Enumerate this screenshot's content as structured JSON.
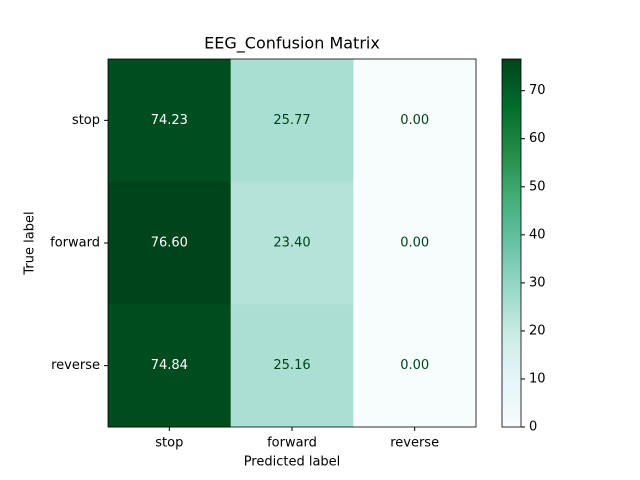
{
  "chart_data": {
    "type": "heatmap",
    "title": "EEG_Confusion Matrix",
    "xlabel": "Predicted label",
    "ylabel": "True label",
    "x_categories": [
      "stop",
      "forward",
      "reverse"
    ],
    "y_categories": [
      "stop",
      "forward",
      "reverse"
    ],
    "values": [
      [
        74.23,
        25.77,
        0
      ],
      [
        76.6,
        23.4,
        0
      ],
      [
        74.84,
        25.16,
        0
      ]
    ],
    "value_labels": [
      [
        "74.23",
        "25.77",
        "0.00"
      ],
      [
        "76.60",
        "23.40",
        "0.00"
      ],
      [
        "74.84",
        "25.16",
        "0.00"
      ]
    ],
    "clim": [
      0,
      76.6
    ],
    "cticks": [
      0,
      10,
      20,
      30,
      40,
      50,
      60,
      70
    ],
    "colormap": [
      "#f7fcfd",
      "#e5f5f9",
      "#ccece6",
      "#99d8c9",
      "#66c2a4",
      "#41ae76",
      "#238b45",
      "#006d2c",
      "#00441b"
    ]
  }
}
